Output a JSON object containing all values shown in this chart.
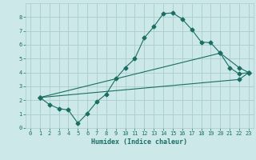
{
  "xlabel": "Humidex (Indice chaleur)",
  "bg_color": "#cce8e8",
  "grid_color": "#aacccc",
  "line_color": "#1a6e64",
  "xlim": [
    -0.5,
    23.5
  ],
  "ylim": [
    0,
    9
  ],
  "xticks": [
    0,
    1,
    2,
    3,
    4,
    5,
    6,
    7,
    8,
    9,
    10,
    11,
    12,
    13,
    14,
    15,
    16,
    17,
    18,
    19,
    20,
    21,
    22,
    23
  ],
  "yticks": [
    0,
    1,
    2,
    3,
    4,
    5,
    6,
    7,
    8
  ],
  "line1_x": [
    1,
    2,
    3,
    4,
    5,
    6,
    7,
    8,
    9,
    10,
    11,
    12,
    13,
    14,
    15,
    16,
    17,
    18,
    19,
    20,
    21,
    22,
    23
  ],
  "line1_y": [
    2.2,
    1.7,
    1.4,
    1.3,
    0.35,
    1.05,
    1.9,
    2.45,
    3.55,
    4.35,
    5.0,
    6.5,
    7.3,
    8.25,
    8.3,
    7.85,
    7.1,
    6.2,
    6.15,
    5.4,
    4.35,
    3.9,
    4.0
  ],
  "line2_x": [
    1,
    20,
    22,
    23
  ],
  "line2_y": [
    2.2,
    5.4,
    4.35,
    4.0
  ],
  "line3_x": [
    1,
    22,
    23
  ],
  "line3_y": [
    2.2,
    3.5,
    4.0
  ],
  "marker": "D",
  "marker_size": 2.5,
  "tick_fontsize": 5.0,
  "xlabel_fontsize": 6.0
}
